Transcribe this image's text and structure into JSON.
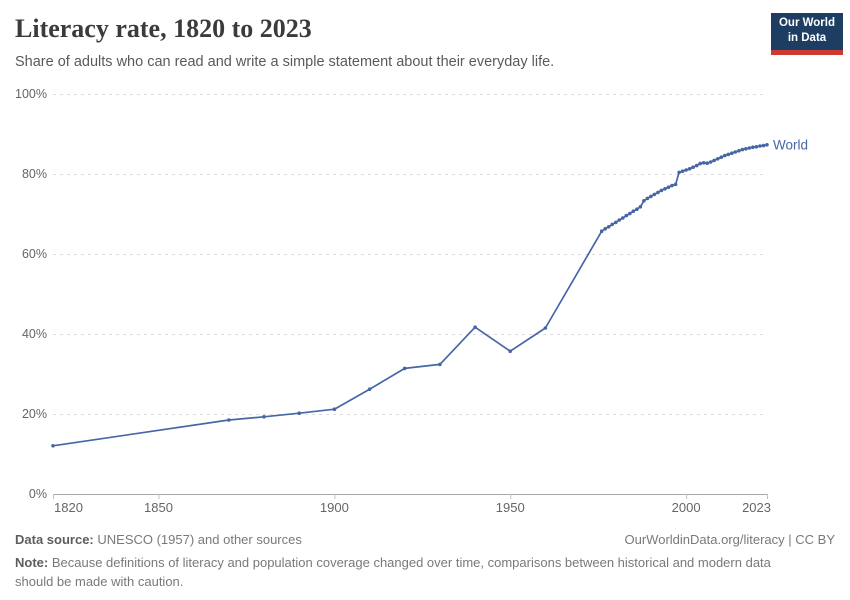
{
  "header": {
    "title": "Literacy rate, 1820 to 2023",
    "subtitle": "Share of adults who can read and write a simple statement about their everyday life.",
    "logo": {
      "line1": "Our World",
      "line2": "in Data",
      "bg_color": "#1d3d63",
      "accent_color": "#cc3b33"
    }
  },
  "chart_data": {
    "type": "line",
    "title": "Literacy rate, 1820 to 2023",
    "xlabel": "",
    "ylabel": "",
    "xlim": [
      1820,
      2023
    ],
    "ylim": [
      0,
      100
    ],
    "grid": "horizontal-dashed",
    "legend_position": "end-of-line",
    "x_ticks": [
      1820,
      1850,
      1900,
      1950,
      2000,
      2023
    ],
    "y_ticks": [
      0,
      20,
      40,
      60,
      80,
      100
    ],
    "y_tick_suffix": "%",
    "colors": {
      "line": "#4666a5",
      "grid": "#dcdcdc",
      "axis": "#a8a8a8",
      "tick": "#c0c0c0",
      "tick_label": "#666666"
    },
    "series": [
      {
        "name": "World",
        "color": "#4666a5",
        "points": [
          [
            1820,
            12.05
          ],
          [
            1870,
            18.5
          ],
          [
            1880,
            19.3
          ],
          [
            1890,
            20.2
          ],
          [
            1900,
            21.2
          ],
          [
            1910,
            26.2
          ],
          [
            1920,
            31.4
          ],
          [
            1930,
            32.4
          ],
          [
            1940,
            41.7
          ],
          [
            1950,
            35.7
          ],
          [
            1960,
            41.5
          ],
          [
            1976,
            65.7
          ],
          [
            1977,
            66.3
          ],
          [
            1978,
            66.8
          ],
          [
            1979,
            67.4
          ],
          [
            1980,
            67.9
          ],
          [
            1981,
            68.5
          ],
          [
            1982,
            69.0
          ],
          [
            1983,
            69.6
          ],
          [
            1984,
            70.1
          ],
          [
            1985,
            70.7
          ],
          [
            1986,
            71.2
          ],
          [
            1987,
            71.8
          ],
          [
            1988,
            73.3
          ],
          [
            1989,
            73.9
          ],
          [
            1990,
            74.4
          ],
          [
            1991,
            74.9
          ],
          [
            1992,
            75.4
          ],
          [
            1993,
            75.9
          ],
          [
            1994,
            76.3
          ],
          [
            1995,
            76.7
          ],
          [
            1996,
            77.1
          ],
          [
            1997,
            77.4
          ],
          [
            1998,
            80.4
          ],
          [
            1999,
            80.7
          ],
          [
            2000,
            81.0
          ],
          [
            2001,
            81.3
          ],
          [
            2002,
            81.7
          ],
          [
            2003,
            82.1
          ],
          [
            2004,
            82.6
          ],
          [
            2005,
            82.8
          ],
          [
            2006,
            82.7
          ],
          [
            2007,
            83.0
          ],
          [
            2008,
            83.4
          ],
          [
            2009,
            83.8
          ],
          [
            2010,
            84.2
          ],
          [
            2011,
            84.6
          ],
          [
            2012,
            84.9
          ],
          [
            2013,
            85.2
          ],
          [
            2014,
            85.5
          ],
          [
            2015,
            85.8
          ],
          [
            2016,
            86.1
          ],
          [
            2017,
            86.3
          ],
          [
            2018,
            86.5
          ],
          [
            2019,
            86.7
          ],
          [
            2020,
            86.8
          ],
          [
            2021,
            87.0
          ],
          [
            2022,
            87.1
          ],
          [
            2023,
            87.3
          ]
        ]
      }
    ]
  },
  "footer": {
    "source_label": "Data source:",
    "source_value": "UNESCO (1957) and other sources",
    "credit": "OurWorldinData.org/literacy | CC BY",
    "note_label": "Note:",
    "note_value": "Because definitions of literacy and population coverage changed over time, comparisons between historical and modern data should be made with caution."
  }
}
